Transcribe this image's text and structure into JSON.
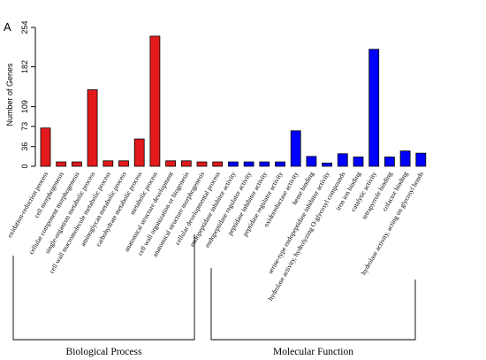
{
  "chart_data": {
    "type": "bar",
    "panel_label": "A",
    "ylabel": "Number of Genes",
    "y_ticks": [
      0,
      36,
      73,
      109,
      182,
      254
    ],
    "ylim": [
      0,
      254
    ],
    "categories": [
      "oxidation-reduction process",
      "cell morphogenesis",
      "cellular component morphogenesis",
      "single-organism metabolic process",
      "cell wall macromolecule metabolic process",
      "aminoglycan metabolic process",
      "carbohydrate metabolic process",
      "metabolic process",
      "anatomical structure development",
      "cell wall organization or biogenesis",
      "anatomical structure morphogenesis",
      "cellular developmental process",
      "endopeptidase inhibitor activity",
      "endopeptidase regulator activity",
      "peptidase inhibitor activity",
      "peptidase regulator activity",
      "oxidoreductase activity",
      "heme binding",
      "serine-type endopeptidase inhibitor activity",
      "hydrolase activity, hydrolyzing O-glycosyl compounds",
      "iron ion binding",
      "catalytic activity",
      "tetrapyrrole binding",
      "cofactor binding",
      "hydrolase activity, acting on glycosyl bonds"
    ],
    "values": [
      70,
      8,
      8,
      140,
      10,
      10,
      50,
      238,
      10,
      10,
      8,
      8,
      8,
      8,
      8,
      8,
      65,
      18,
      6,
      23,
      17,
      214,
      17,
      28,
      24
    ],
    "colors": [
      "#e31a1c",
      "#e31a1c",
      "#e31a1c",
      "#e31a1c",
      "#e31a1c",
      "#e31a1c",
      "#e31a1c",
      "#e31a1c",
      "#e31a1c",
      "#e31a1c",
      "#e31a1c",
      "#e31a1c",
      "#0000ff",
      "#0000ff",
      "#0000ff",
      "#0000ff",
      "#0000ff",
      "#0000ff",
      "#0000ff",
      "#0000ff",
      "#0000ff",
      "#0000ff",
      "#0000ff",
      "#0000ff",
      "#0000ff"
    ],
    "groups": [
      {
        "label": "Biological Process",
        "start": 0,
        "end": 11
      },
      {
        "label": "Molecular Function",
        "start": 12,
        "end": 24
      }
    ]
  }
}
